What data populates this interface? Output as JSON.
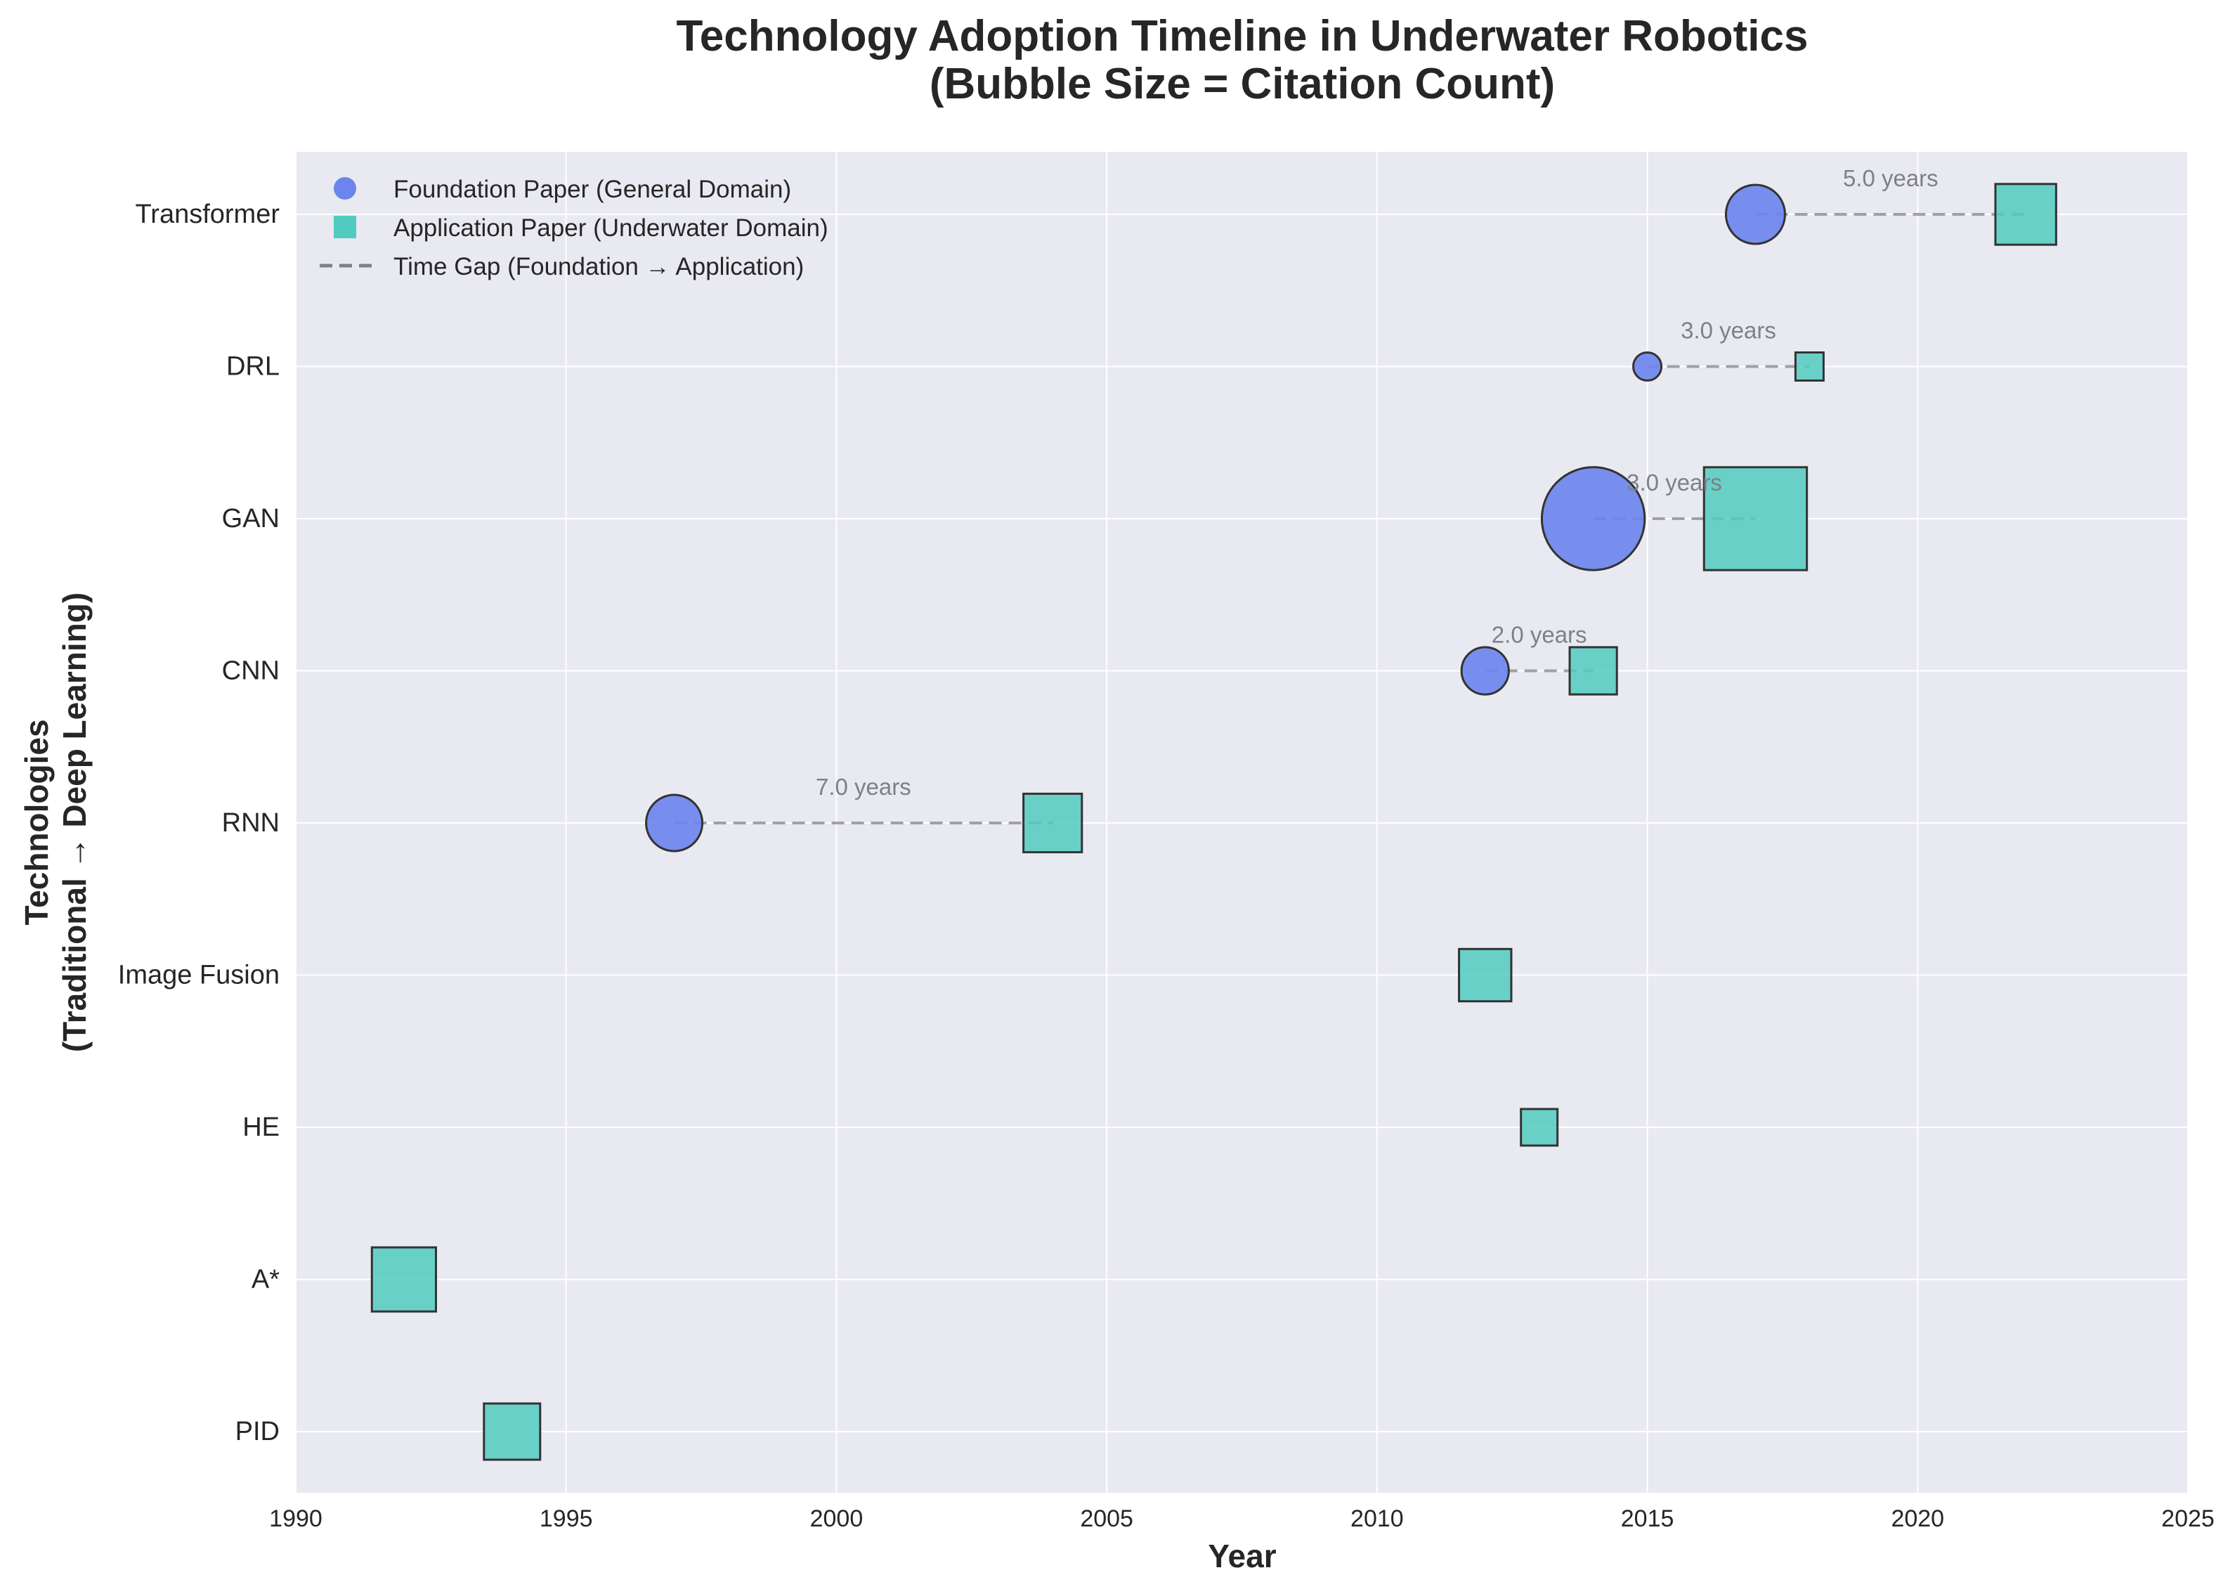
{
  "chart_data": {
    "type": "scatter",
    "title_lines": [
      "Technology Adoption Timeline in Underwater Robotics",
      "(Bubble Size = Citation Count)"
    ],
    "xlabel": "Year",
    "ylabel_lines": [
      "Technologies",
      "(Traditional → Deep Learning)"
    ],
    "xlim": [
      1990,
      2025
    ],
    "xticks": [
      1990,
      1995,
      2000,
      2005,
      2010,
      2015,
      2020,
      2025
    ],
    "categories": [
      "PID",
      "A*",
      "HE",
      "Image Fusion",
      "RNN",
      "CNN",
      "GAN",
      "DRL",
      "Transformer"
    ],
    "grid": true,
    "legend_position": "upper-left",
    "colors": {
      "plot_background": "#e9e9f1",
      "foundation": "#6b84ee",
      "application": "#52cbbf",
      "marker_edge": "#333333",
      "gap_line": "#a0a0aa",
      "gap_text": "#7f7f86"
    },
    "legend": [
      {
        "label": "Foundation Paper (General Domain)",
        "marker": "circle"
      },
      {
        "label": "Application Paper (Underwater Domain)",
        "marker": "square"
      },
      {
        "label": "Time Gap (Foundation → Application)",
        "marker": "dashed-line"
      }
    ],
    "series": [
      {
        "name": "Foundation Paper (General Domain)",
        "marker": "circle",
        "points": [
          {
            "tech": "RNN",
            "year": 1997,
            "size": 1.0
          },
          {
            "tech": "CNN",
            "year": 2012,
            "size": 0.84
          },
          {
            "tech": "GAN",
            "year": 2014,
            "size": 1.83
          },
          {
            "tech": "DRL",
            "year": 2015,
            "size": 0.5
          },
          {
            "tech": "Transformer",
            "year": 2017,
            "size": 1.05
          }
        ]
      },
      {
        "name": "Application Paper (Underwater Domain)",
        "marker": "square",
        "points": [
          {
            "tech": "PID",
            "year": 1994,
            "size": 1.0
          },
          {
            "tech": "A*",
            "year": 1992,
            "size": 1.14
          },
          {
            "tech": "HE",
            "year": 2013,
            "size": 0.65
          },
          {
            "tech": "Image Fusion",
            "year": 2012,
            "size": 0.93
          },
          {
            "tech": "RNN",
            "year": 2004,
            "size": 1.04
          },
          {
            "tech": "CNN",
            "year": 2014,
            "size": 0.84
          },
          {
            "tech": "GAN",
            "year": 2017,
            "size": 1.83
          },
          {
            "tech": "DRL",
            "year": 2018,
            "size": 0.5
          },
          {
            "tech": "Transformer",
            "year": 2022,
            "size": 1.08
          }
        ]
      }
    ],
    "gaps": [
      {
        "tech": "RNN",
        "from": 1997,
        "to": 2004,
        "label": "7.0 years"
      },
      {
        "tech": "CNN",
        "from": 2012,
        "to": 2014,
        "label": "2.0 years"
      },
      {
        "tech": "GAN",
        "from": 2014,
        "to": 2017,
        "label": "3.0 years"
      },
      {
        "tech": "DRL",
        "from": 2015,
        "to": 2018,
        "label": "3.0 years"
      },
      {
        "tech": "Transformer",
        "from": 2017,
        "to": 2022,
        "label": "5.0 years"
      }
    ]
  }
}
